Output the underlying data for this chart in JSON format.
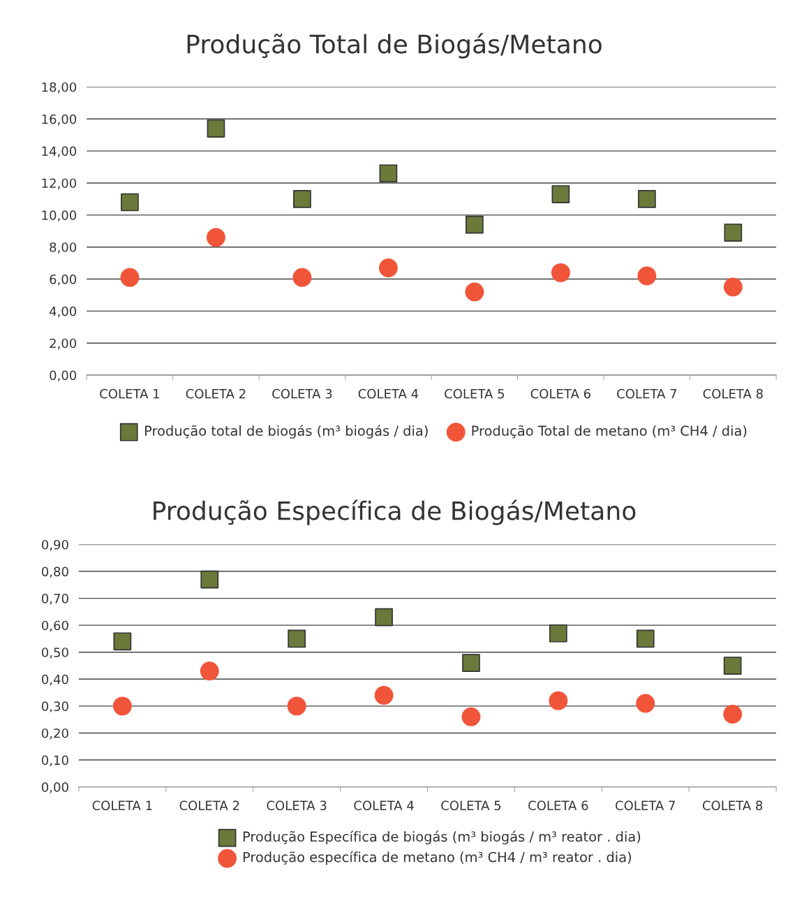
{
  "chart_data": [
    {
      "type": "scatter",
      "title": "Produção Total de Biogás/Metano",
      "categories": [
        "COLETA 1",
        "COLETA 2",
        "COLETA 3",
        "COLETA 4",
        "COLETA 5",
        "COLETA 6",
        "COLETA 7",
        "COLETA 8"
      ],
      "ylim": [
        0,
        18
      ],
      "yticks": [
        {
          "value": 0,
          "label": "0,00"
        },
        {
          "value": 2,
          "label": "2,00"
        },
        {
          "value": 4,
          "label": "4,00"
        },
        {
          "value": 6,
          "label": "6,00"
        },
        {
          "value": 8,
          "label": "8,00"
        },
        {
          "value": 10,
          "label": "10,00"
        },
        {
          "value": 12,
          "label": "12,00"
        },
        {
          "value": 14,
          "label": "14,00"
        },
        {
          "value": 16,
          "label": "16,00"
        },
        {
          "value": 18,
          "label": "18,00"
        }
      ],
      "grid": "y",
      "legend": "bottom",
      "series": [
        {
          "name": "Produção total de biogás (m³ biogás / dia)",
          "color": "#6b7a3a",
          "marker": "square",
          "values": [
            10.8,
            15.4,
            11.0,
            12.6,
            9.4,
            11.3,
            11.0,
            8.9
          ]
        },
        {
          "name": "Produção Total de metano (m³ CH4 / dia)",
          "color": "#f0553a",
          "marker": "circle",
          "values": [
            6.1,
            8.6,
            6.1,
            6.7,
            5.2,
            6.4,
            6.2,
            5.5
          ]
        }
      ]
    },
    {
      "type": "scatter",
      "title": "Produção Específica de Biogás/Metano",
      "categories": [
        "COLETA 1",
        "COLETA 2",
        "COLETA 3",
        "COLETA 4",
        "COLETA 5",
        "COLETA 6",
        "COLETA 7",
        "COLETA 8"
      ],
      "ylim": [
        0,
        0.9
      ],
      "yticks": [
        {
          "value": 0,
          "label": "0,00"
        },
        {
          "value": 0.1,
          "label": "0,10"
        },
        {
          "value": 0.2,
          "label": "0,20"
        },
        {
          "value": 0.3,
          "label": "0,30"
        },
        {
          "value": 0.4,
          "label": "0,40"
        },
        {
          "value": 0.5,
          "label": "0,50"
        },
        {
          "value": 0.6,
          "label": "0,60"
        },
        {
          "value": 0.7,
          "label": "0,70"
        },
        {
          "value": 0.8,
          "label": "0,80"
        },
        {
          "value": 0.9,
          "label": "0,90"
        }
      ],
      "grid": "y",
      "legend": "bottom",
      "series": [
        {
          "name": "Produção Específica de biogás (m³ biogás / m³ reator . dia)",
          "color": "#6b7a3a",
          "marker": "square",
          "values": [
            0.54,
            0.77,
            0.55,
            0.63,
            0.46,
            0.57,
            0.55,
            0.45
          ]
        },
        {
          "name": "Produção específica de metano (m³ CH4 / m³ reator . dia)",
          "color": "#f0553a",
          "marker": "circle",
          "values": [
            0.3,
            0.43,
            0.3,
            0.34,
            0.26,
            0.32,
            0.31,
            0.27
          ]
        }
      ]
    }
  ]
}
